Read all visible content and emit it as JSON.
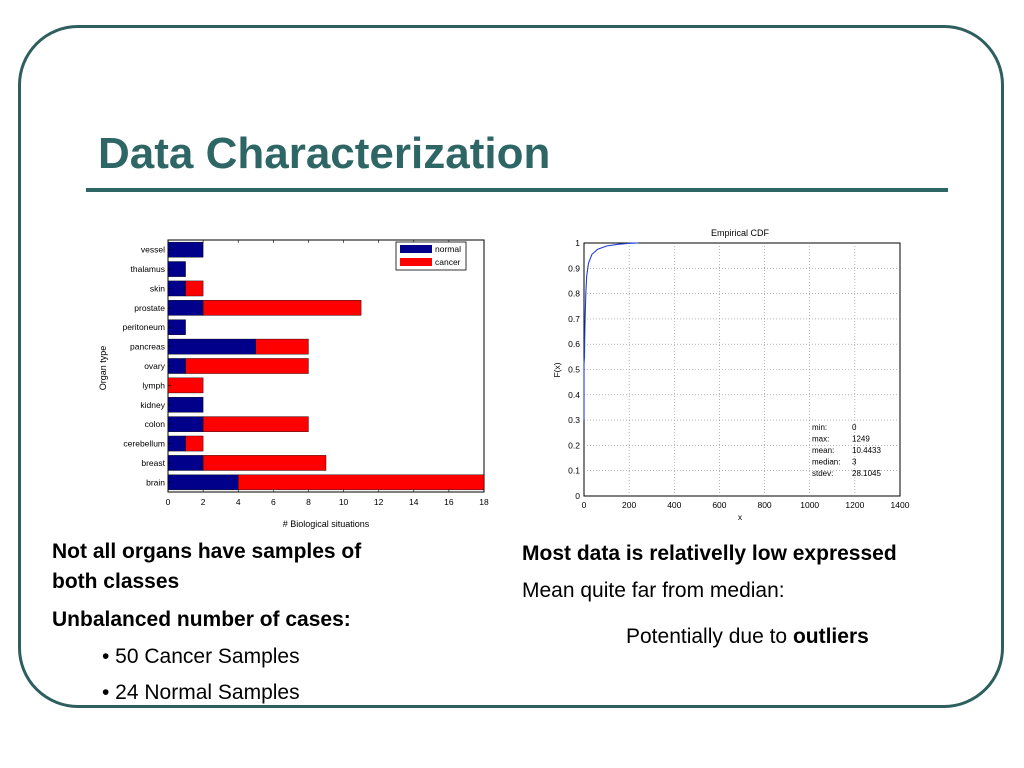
{
  "slide": {
    "title": "Data Characterization",
    "left_text": {
      "line1": "Not all organs have samples of",
      "line2": "both classes",
      "line3": "Unbalanced number of cases:",
      "bullet1": "• 50 Cancer Samples",
      "bullet2": "• 24 Normal Samples"
    },
    "right_text": {
      "line1": "Most data is relativelly low expressed",
      "line2": "Mean quite far from median:",
      "line3_prefix": "Potentially due to ",
      "line3_bold": "outliers"
    },
    "colors": {
      "accent": "#2e6666",
      "normal": "#00008b",
      "cancer": "#ff0000",
      "cdf_line": "#1f3fd6"
    }
  },
  "chart_data": [
    {
      "type": "bar",
      "orientation": "horizontal",
      "stacked": true,
      "xlabel": "# Biological situations",
      "ylabel": "Organ type",
      "xlim": [
        0,
        18
      ],
      "xticks": [
        0,
        2,
        4,
        6,
        8,
        10,
        12,
        14,
        16,
        18
      ],
      "legend_position": "top-right",
      "categories": [
        "vessel",
        "thalamus",
        "skin",
        "prostate",
        "peritoneum",
        "pancreas",
        "ovary",
        "lymph",
        "kidney",
        "colon",
        "cerebellum",
        "breast",
        "brain"
      ],
      "series": [
        {
          "name": "normal",
          "values": [
            2,
            1,
            1,
            2,
            1,
            5,
            1,
            0,
            2,
            2,
            1,
            2,
            4
          ]
        },
        {
          "name": "cancer",
          "values": [
            0,
            0,
            1,
            9,
            0,
            3,
            7,
            2,
            0,
            6,
            1,
            7,
            14
          ]
        }
      ]
    },
    {
      "type": "line",
      "title": "Empirical CDF",
      "xlabel": "x",
      "ylabel": "F(x)",
      "xlim": [
        0,
        1400
      ],
      "ylim": [
        0,
        1
      ],
      "xticks": [
        0,
        200,
        400,
        600,
        800,
        1000,
        1200,
        1400
      ],
      "yticks": [
        0,
        0.1,
        0.2,
        0.3,
        0.4,
        0.5,
        0.6,
        0.7,
        0.8,
        0.9,
        1
      ],
      "grid": true,
      "series": [
        {
          "x": [
            0,
            0,
            2,
            3,
            5,
            8,
            12,
            20,
            35,
            60,
            100,
            150,
            200,
            240
          ],
          "y": [
            0.3,
            0.52,
            0.55,
            0.62,
            0.7,
            0.8,
            0.87,
            0.92,
            0.955,
            0.975,
            0.988,
            0.995,
            0.999,
            1.0
          ]
        }
      ],
      "stats": [
        {
          "label": "min:",
          "value": "0"
        },
        {
          "label": "max:",
          "value": "1249"
        },
        {
          "label": "mean:",
          "value": "10.4433"
        },
        {
          "label": "median:",
          "value": "3"
        },
        {
          "label": "stdev:",
          "value": "28.1045"
        }
      ]
    }
  ]
}
